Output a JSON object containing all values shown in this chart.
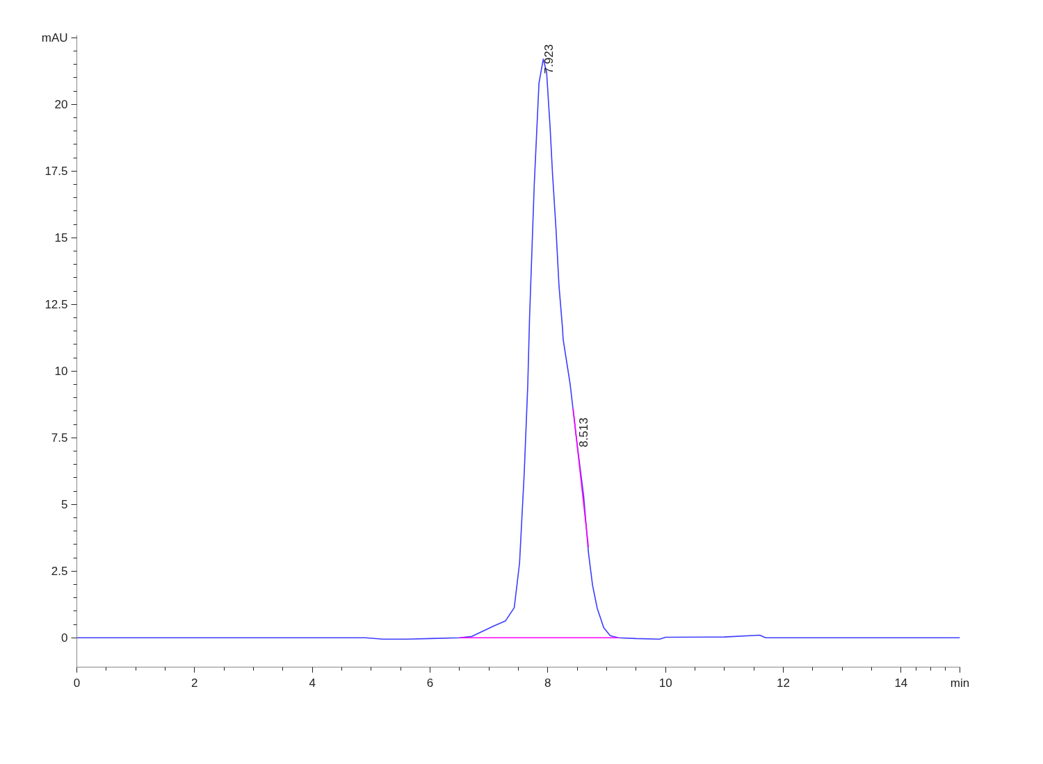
{
  "chart_data": {
    "type": "line",
    "xlim": [
      0,
      15
    ],
    "ylim": [
      -1.1,
      22.6
    ],
    "xticks": [
      0,
      2,
      4,
      6,
      8,
      10,
      12,
      14,
      {
        "value": 15,
        "label": "min"
      }
    ],
    "yticks": [
      0,
      2.5,
      5,
      7.5,
      10,
      12.5,
      15,
      17.5,
      20,
      {
        "value": 22.5,
        "label": "mAU"
      }
    ],
    "grid": false,
    "line_style": "solid",
    "marker": "none",
    "series": [
      {
        "color": "#3c3cff",
        "x": [
          0,
          1,
          2,
          3,
          4,
          4.9,
          5.2,
          5.6,
          6.0,
          6.5,
          6.71,
          7.09,
          7.28,
          7.43,
          7.52,
          7.6,
          7.66,
          7.69,
          7.77,
          7.85,
          7.923,
          7.98,
          8.04,
          8.08,
          8.14,
          8.19,
          8.25,
          8.26,
          8.38,
          8.49,
          8.61,
          8.69,
          8.76,
          8.84,
          8.95,
          9.06,
          9.2,
          9.5,
          9.9,
          10.0,
          11.0,
          11.6,
          11.7,
          12.5,
          13.5,
          15
        ],
        "values": [
          0,
          0,
          0,
          0,
          0,
          0,
          -0.05,
          -0.05,
          -0.03,
          0,
          0.05,
          0.45,
          0.63,
          1.13,
          2.8,
          6.2,
          9.5,
          12.0,
          17.0,
          20.8,
          21.7,
          21.2,
          19.1,
          17.4,
          15.3,
          13.2,
          11.6,
          11.2,
          9.5,
          7.4,
          5.3,
          3.2,
          1.97,
          1.1,
          0.38,
          0.08,
          0,
          -0.03,
          -0.05,
          0.02,
          0.03,
          0.1,
          0,
          0,
          0,
          0
        ]
      },
      {
        "color": "#ff00ff",
        "x": [
          6.5,
          9.2
        ],
        "values": [
          0,
          0
        ]
      },
      {
        "color": "#ff00ff",
        "x": [
          8.43,
          8.69
        ],
        "values": [
          8.6,
          3.4
        ]
      }
    ],
    "annotations": [
      {
        "text": "7.923",
        "x": 7.923,
        "y": 21.7
      },
      {
        "text": "8.513",
        "x": 8.513,
        "y": 7.7
      }
    ]
  }
}
